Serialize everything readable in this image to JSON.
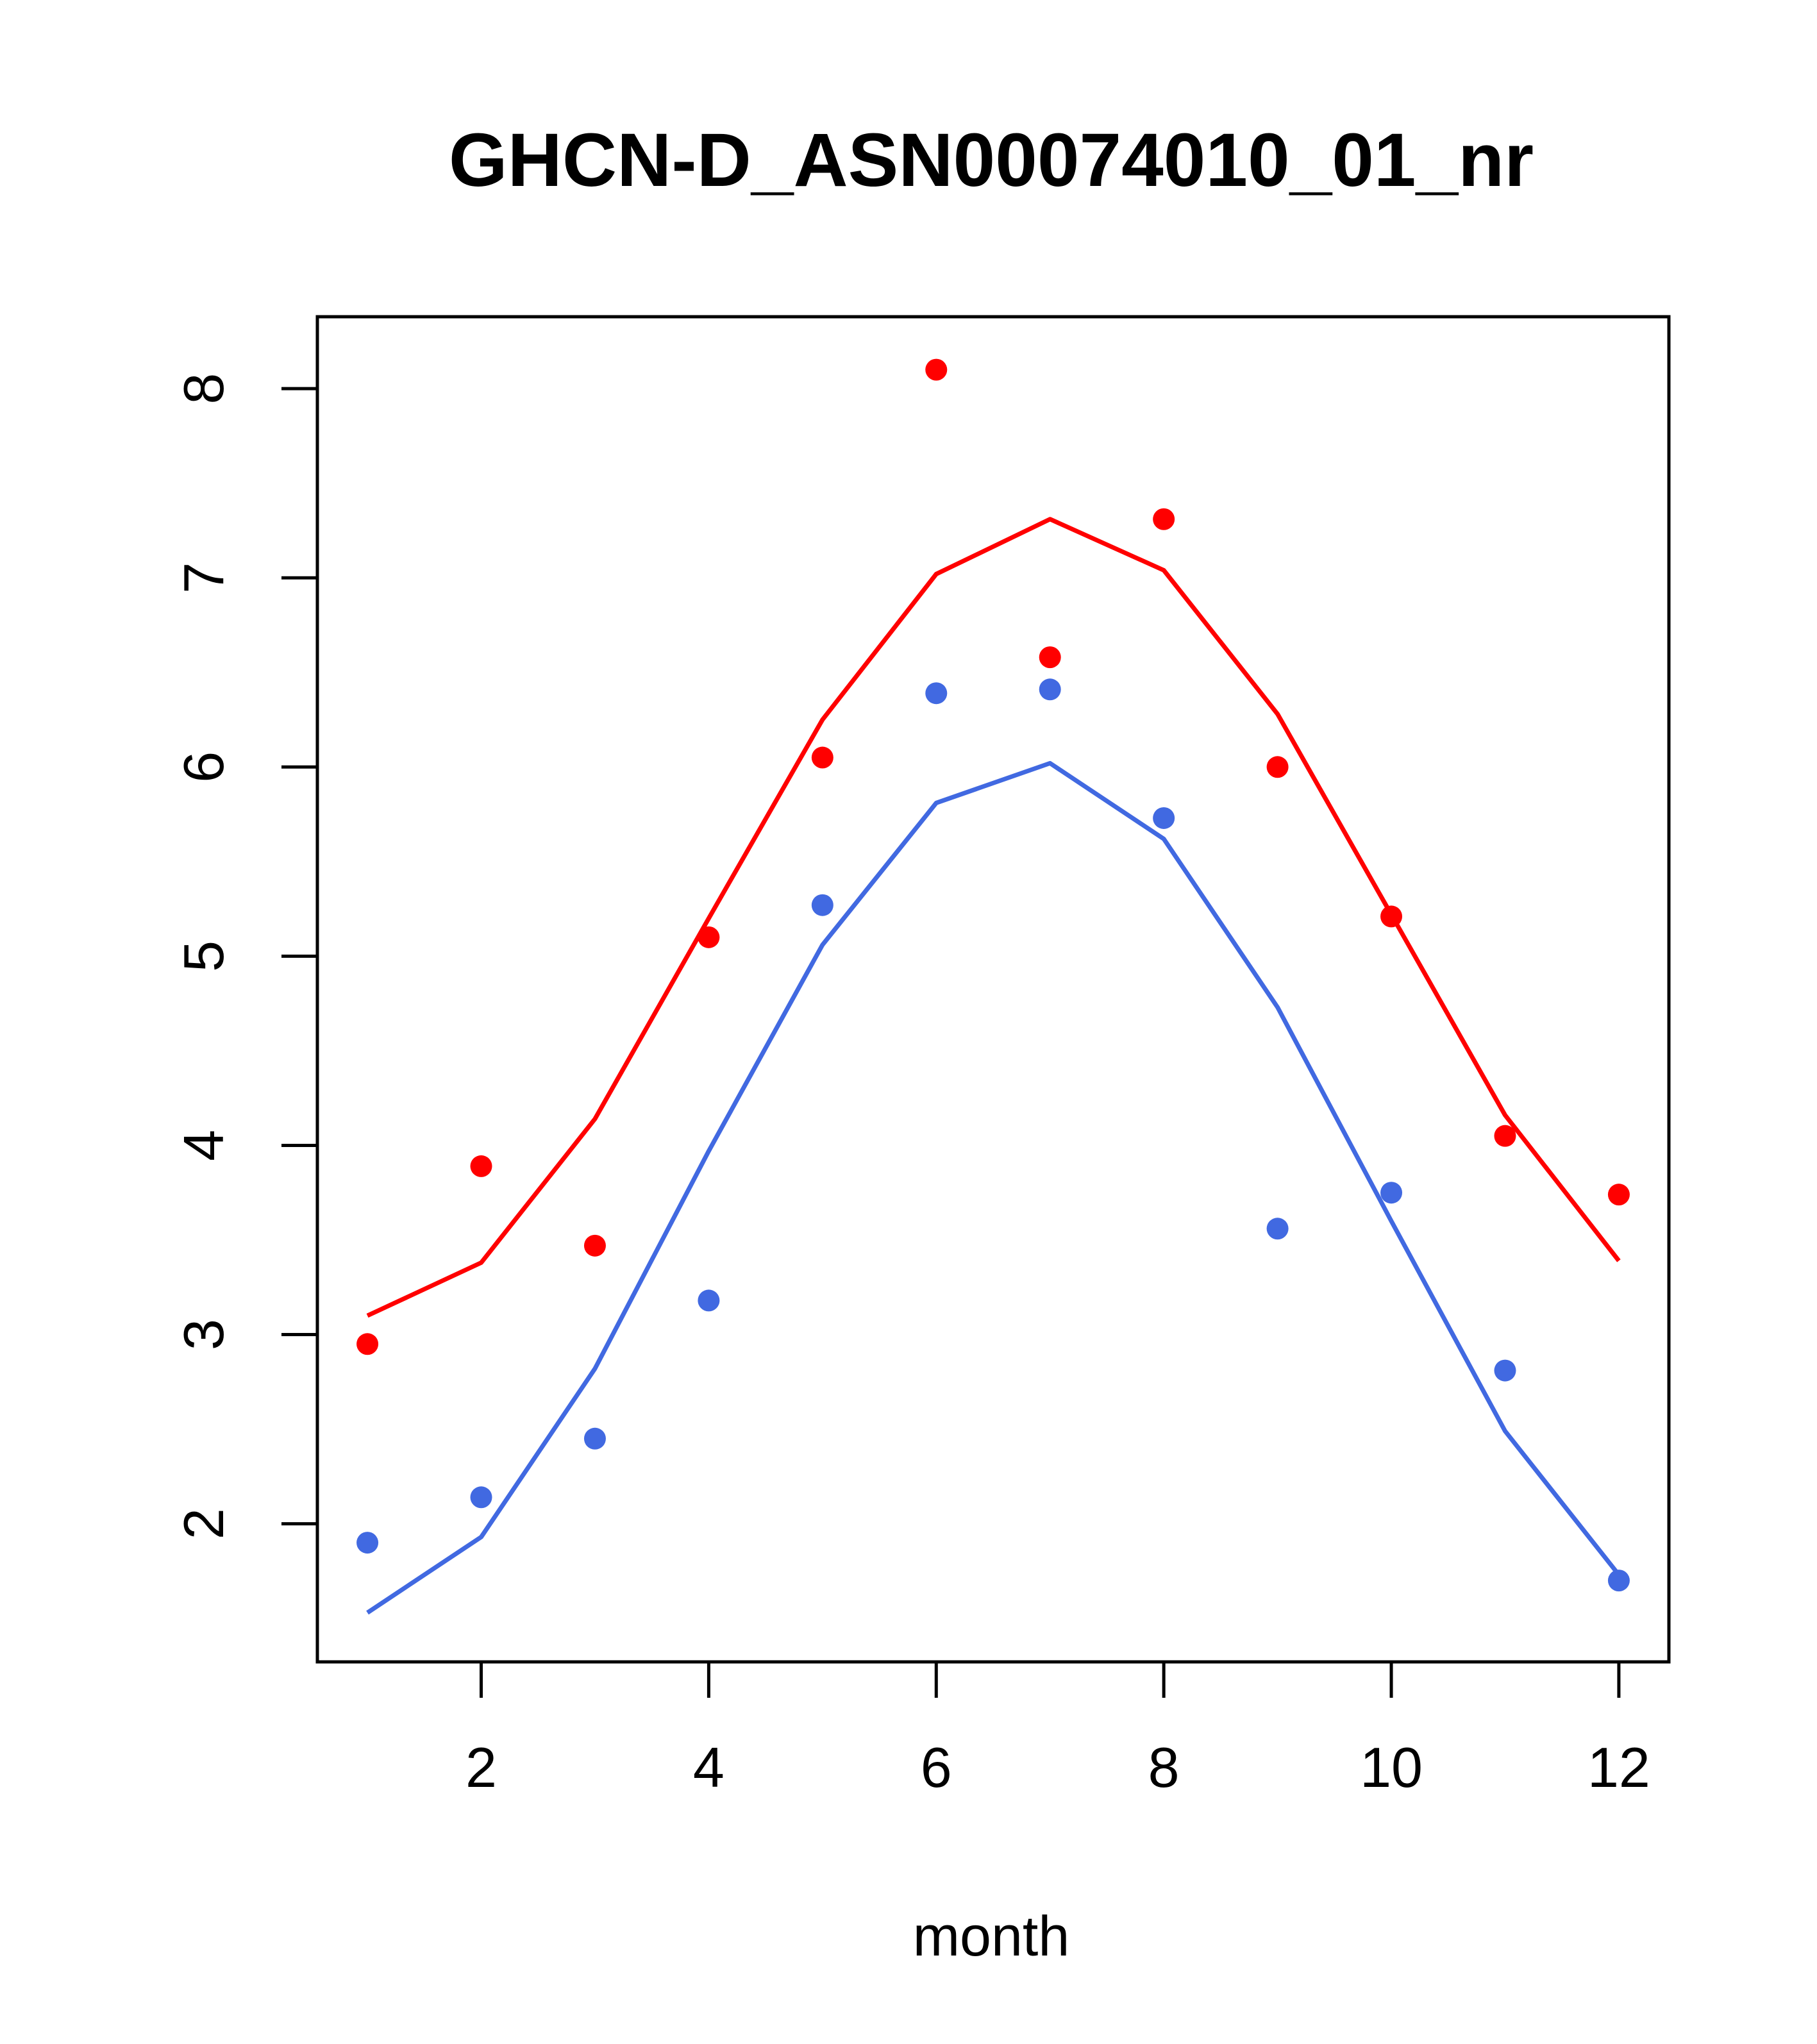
{
  "chart_data": {
    "type": "scatter",
    "title": "GHCN-D_ASN00074010_01_nr",
    "xlabel": "month",
    "ylabel": "",
    "xlim": [
      0.56,
      12.44
    ],
    "ylim": [
      1.27,
      8.38
    ],
    "xticks": [
      2,
      4,
      6,
      8,
      10,
      12
    ],
    "yticks": [
      2,
      3,
      4,
      5,
      6,
      7,
      8
    ],
    "grid": false,
    "series": [
      {
        "color": "#ff0000",
        "mode": "points",
        "x": [
          1,
          2,
          3,
          4,
          5,
          6,
          7,
          8,
          9,
          10,
          11,
          12
        ],
        "y": [
          2.95,
          3.89,
          3.47,
          5.1,
          6.05,
          8.1,
          6.58,
          7.31,
          6.0,
          5.21,
          4.05,
          3.74
        ]
      },
      {
        "color": "#ff0000",
        "mode": "line",
        "x": [
          1,
          2,
          3,
          4,
          5,
          6,
          7,
          8,
          9,
          10,
          11,
          12
        ],
        "y": [
          3.1,
          3.38,
          4.14,
          5.2,
          6.25,
          7.02,
          7.31,
          7.04,
          6.28,
          5.22,
          4.16,
          3.39
        ]
      },
      {
        "color": "#4169e1",
        "mode": "points",
        "x": [
          1,
          2,
          3,
          4,
          5,
          6,
          7,
          8,
          9,
          10,
          11,
          12
        ],
        "y": [
          1.9,
          2.14,
          2.45,
          3.18,
          5.27,
          6.39,
          6.41,
          5.73,
          3.56,
          3.75,
          2.81,
          1.7
        ]
      },
      {
        "color": "#4169e1",
        "mode": "line",
        "x": [
          1,
          2,
          3,
          4,
          5,
          6,
          7,
          8,
          9,
          10,
          11,
          12
        ],
        "y": [
          1.53,
          1.93,
          2.82,
          3.97,
          5.06,
          5.81,
          6.02,
          5.62,
          4.73,
          3.6,
          2.49,
          1.73
        ]
      }
    ]
  }
}
